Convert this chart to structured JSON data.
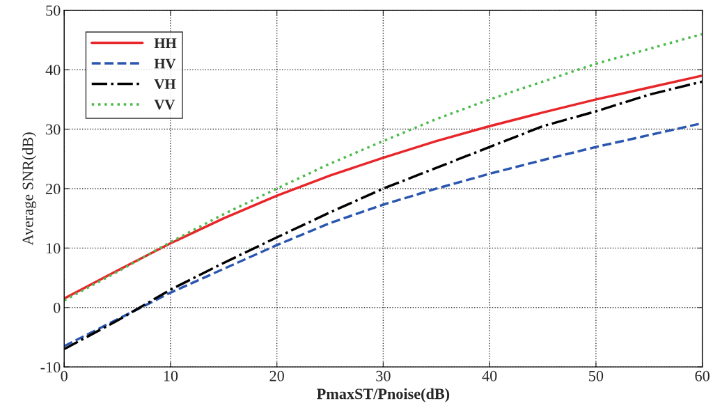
{
  "chart_data": {
    "type": "line",
    "xlabel": "PmaxST/Pnoise(dB)",
    "ylabel": "Average SNR(dB)",
    "x": [
      0,
      5,
      10,
      15,
      20,
      25,
      30,
      35,
      40,
      45,
      50,
      55,
      60
    ],
    "series": [
      {
        "name": "HH",
        "color": "#e8262a",
        "line_style": "solid",
        "values": [
          1.5,
          6.2,
          10.8,
          15,
          18.8,
          22.2,
          25.2,
          28,
          30.5,
          32.8,
          35,
          37,
          39
        ]
      },
      {
        "name": "HV",
        "color": "#2a56b0",
        "line_style": "dashed",
        "values": [
          -6.5,
          -2,
          2.5,
          6.5,
          10.5,
          14.2,
          17.3,
          20,
          22.5,
          24.8,
          27,
          29,
          31
        ]
      },
      {
        "name": "VH",
        "color": "#000000",
        "line_style": "dashdot",
        "values": [
          -7,
          -2.2,
          3,
          7.5,
          11.8,
          16,
          20,
          23.5,
          27,
          30.5,
          33,
          35.8,
          38
        ]
      },
      {
        "name": "VV",
        "color": "#4cbb4c",
        "line_style": "dotted",
        "values": [
          1.2,
          6,
          11,
          15.7,
          20,
          24.2,
          28,
          31.7,
          35,
          38,
          41,
          43.5,
          46
        ]
      }
    ],
    "xlim": [
      0,
      60
    ],
    "ylim": [
      -10,
      50
    ],
    "xticks": [
      0,
      10,
      20,
      30,
      40,
      50,
      60
    ],
    "yticks": [
      -10,
      0,
      10,
      20,
      30,
      40,
      50
    ],
    "grid": true,
    "legend": "top left",
    "marker": "none"
  }
}
